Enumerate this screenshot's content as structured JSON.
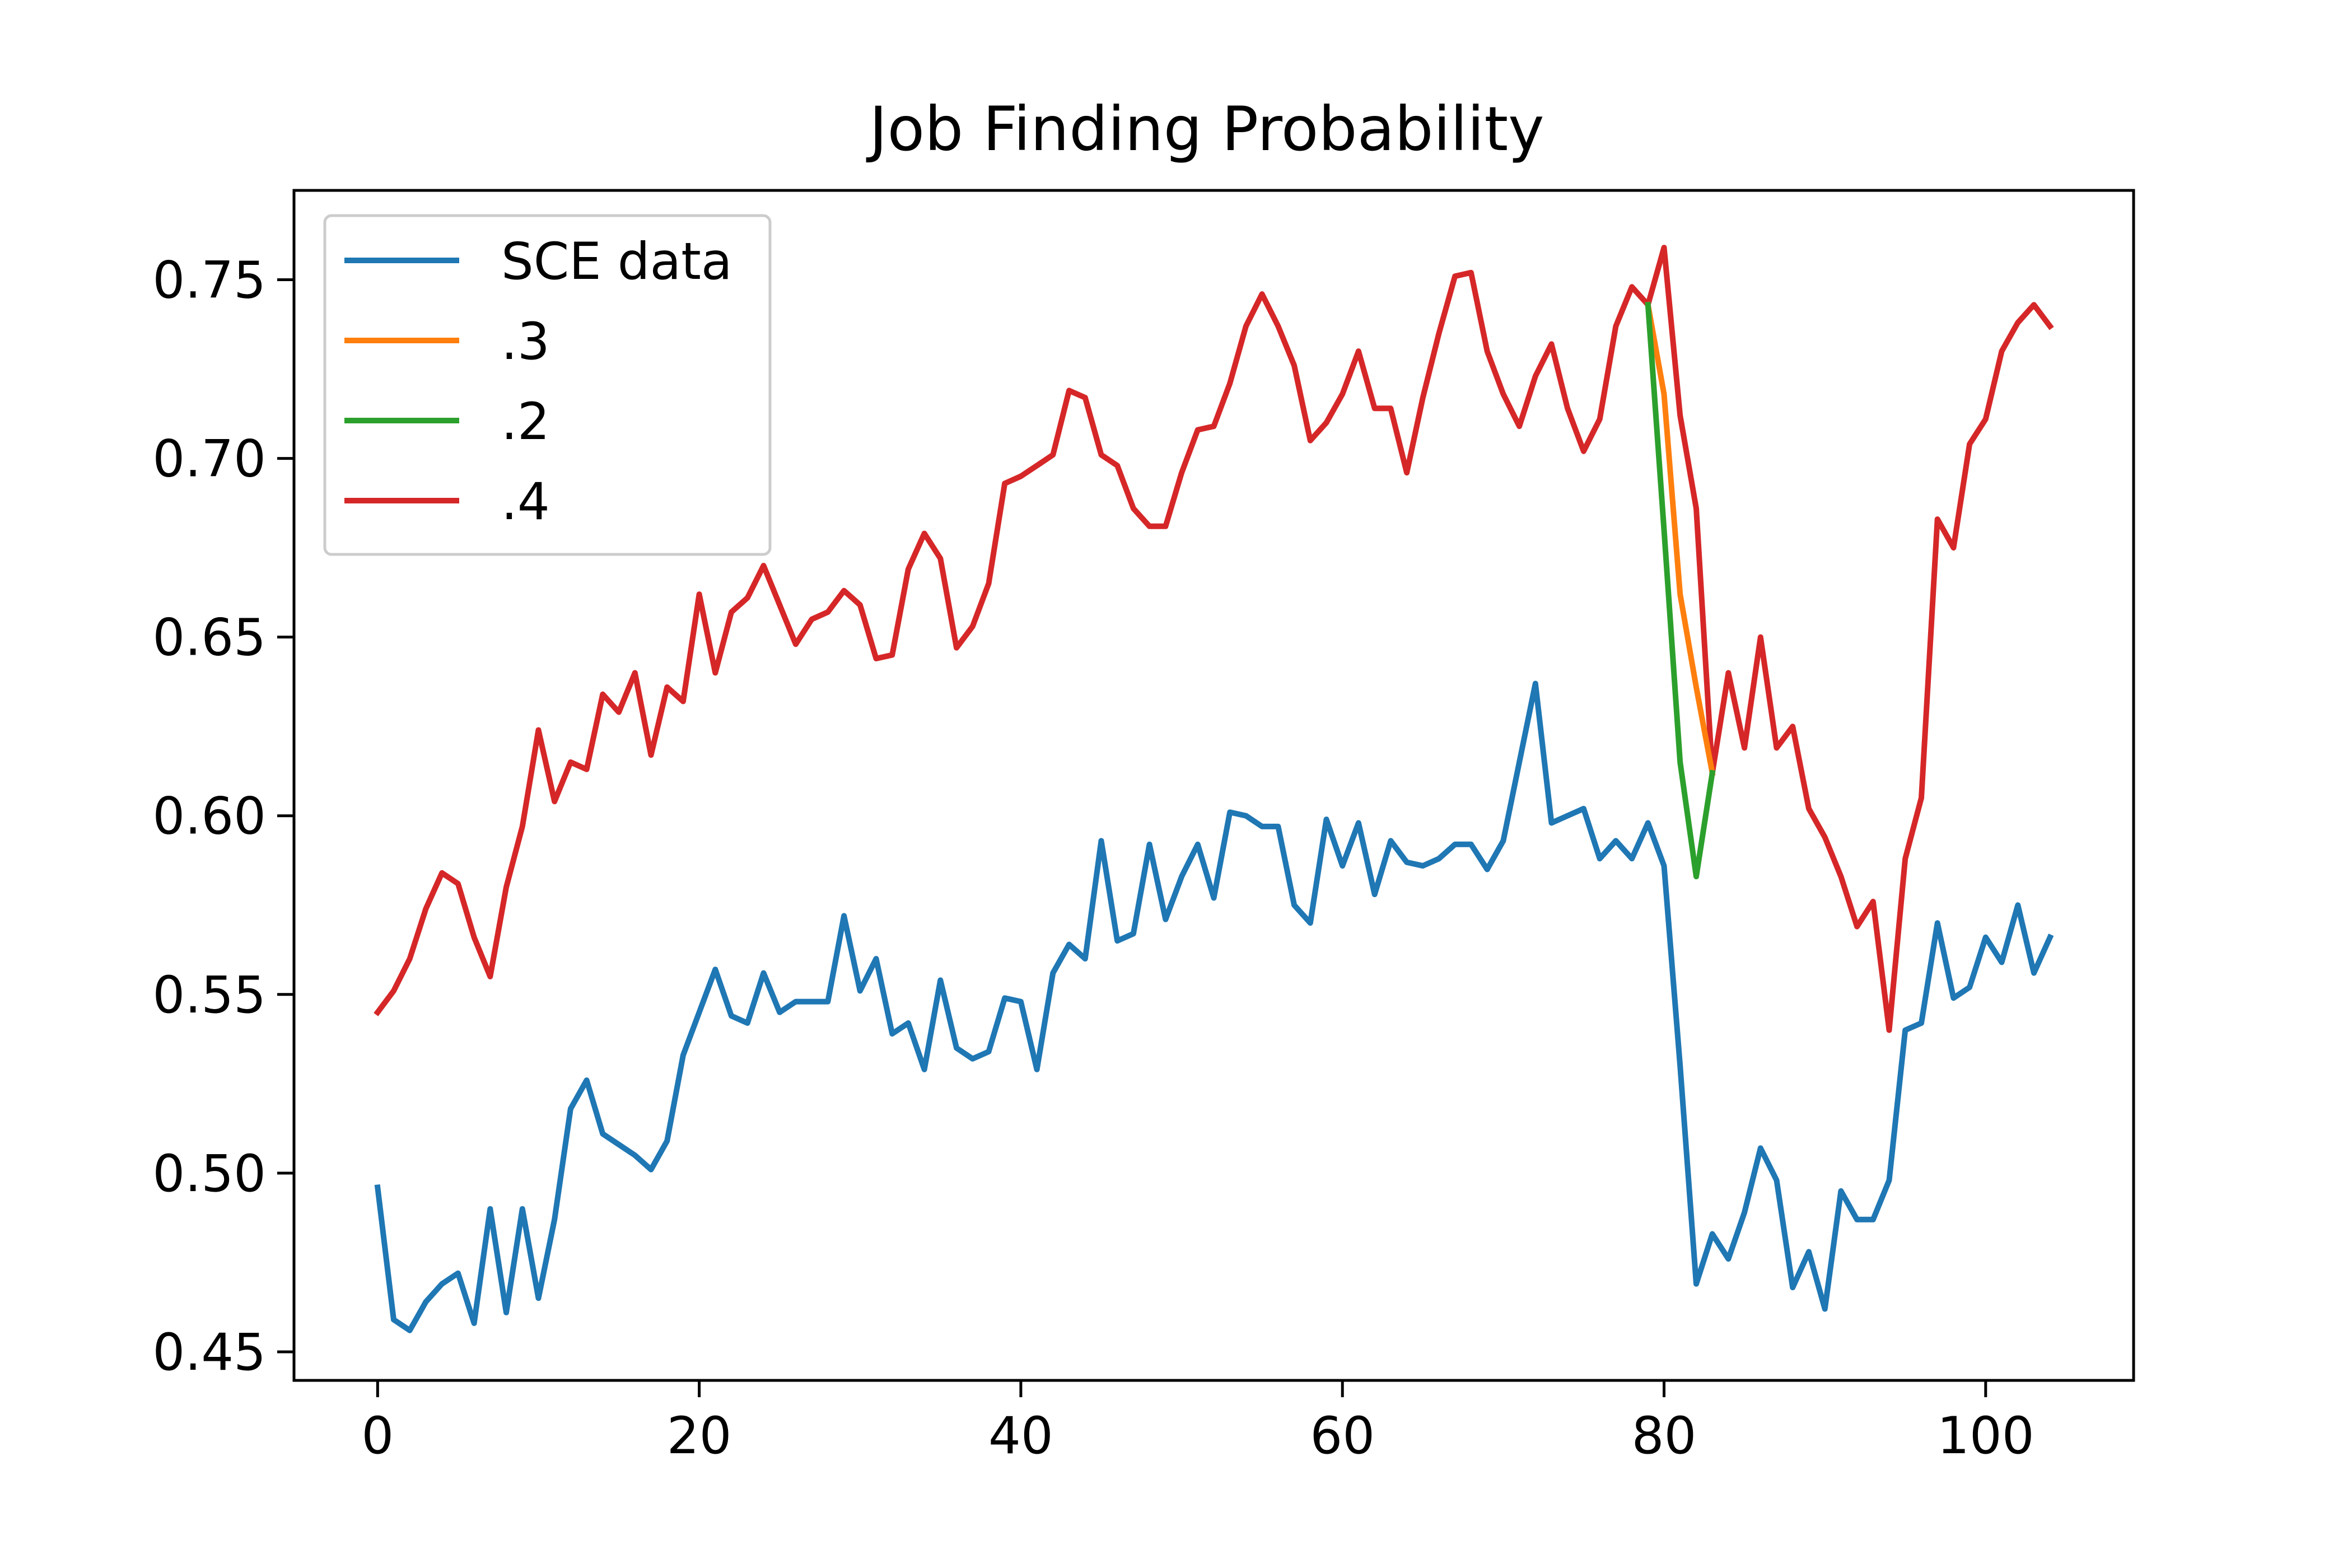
{
  "chart_data": {
    "type": "line",
    "title": "Job Finding Probability",
    "xlabel": "",
    "ylabel": "",
    "xlim": [
      -5.2,
      109.2
    ],
    "ylim": [
      0.442,
      0.775
    ],
    "xticks": [
      0,
      20,
      40,
      60,
      80,
      100
    ],
    "xtick_labels": [
      "0",
      "20",
      "40",
      "60",
      "80",
      "100"
    ],
    "yticks": [
      0.45,
      0.5,
      0.55,
      0.6,
      0.65,
      0.7,
      0.75
    ],
    "ytick_labels": [
      "0.45",
      "0.50",
      "0.55",
      "0.60",
      "0.65",
      "0.70",
      "0.75"
    ],
    "grid": false,
    "legend_position": "top-left",
    "series": [
      {
        "name": "SCE data",
        "color": "#1f77b4",
        "x": [
          0,
          1,
          2,
          3,
          4,
          5,
          6,
          7,
          8,
          9,
          10,
          11,
          12,
          13,
          14,
          15,
          16,
          17,
          18,
          19,
          20,
          21,
          22,
          23,
          24,
          25,
          26,
          27,
          28,
          29,
          30,
          31,
          32,
          33,
          34,
          35,
          36,
          37,
          38,
          39,
          40,
          41,
          42,
          43,
          44,
          45,
          46,
          47,
          48,
          49,
          50,
          51,
          52,
          53,
          54,
          55,
          56,
          57,
          58,
          59,
          60,
          61,
          62,
          63,
          64,
          65,
          66,
          67,
          68,
          69,
          70,
          71,
          72,
          73,
          74,
          75,
          76,
          77,
          78,
          79,
          80,
          81,
          82,
          83,
          84,
          85,
          86,
          87,
          88,
          89,
          90,
          91,
          92,
          93,
          94,
          95,
          96,
          97,
          98,
          99,
          100,
          101,
          102,
          103,
          104
        ],
        "y": [
          0.496,
          0.459,
          0.456,
          0.464,
          0.469,
          0.472,
          0.458,
          0.49,
          0.461,
          0.49,
          0.465,
          0.487,
          0.518,
          0.526,
          0.511,
          0.508,
          0.505,
          0.501,
          0.509,
          0.533,
          0.545,
          0.557,
          0.544,
          0.542,
          0.556,
          0.545,
          0.548,
          0.548,
          0.548,
          0.572,
          0.551,
          0.56,
          0.539,
          0.542,
          0.529,
          0.554,
          0.535,
          0.532,
          0.534,
          0.549,
          0.548,
          0.529,
          0.556,
          0.564,
          0.56,
          0.593,
          0.565,
          0.567,
          0.592,
          0.571,
          0.583,
          0.592,
          0.577,
          0.601,
          0.6,
          0.597,
          0.597,
          0.575,
          0.57,
          0.599,
          0.586,
          0.598,
          0.578,
          0.593,
          0.587,
          0.586,
          0.588,
          0.592,
          0.592,
          0.585,
          0.593,
          0.615,
          0.637,
          0.598,
          0.6,
          0.602,
          0.588,
          0.593,
          0.588,
          0.598,
          0.586,
          0.53,
          0.469,
          0.483,
          0.476,
          0.489,
          0.507,
          0.498,
          0.468,
          0.478,
          0.462,
          0.495,
          0.487,
          0.487,
          0.498,
          0.54,
          0.542,
          0.57,
          0.549,
          0.552,
          0.566,
          0.559,
          0.575,
          0.556,
          0.566
        ]
      },
      {
        "name": ".3",
        "color": "#ff7f0e",
        "x": [
          79,
          80,
          81,
          82,
          83
        ],
        "y": [
          0.743,
          0.718,
          0.662,
          0.636,
          0.612
        ]
      },
      {
        "name": ".2",
        "color": "#2ca02c",
        "x": [
          79,
          80,
          81,
          82,
          83
        ],
        "y": [
          0.743,
          0.68,
          0.615,
          0.583,
          0.612
        ]
      },
      {
        "name": ".4",
        "color": "#d62728",
        "x": [
          0,
          1,
          2,
          3,
          4,
          5,
          6,
          7,
          8,
          9,
          10,
          11,
          12,
          13,
          14,
          15,
          16,
          17,
          18,
          19,
          20,
          21,
          22,
          23,
          24,
          25,
          26,
          27,
          28,
          29,
          30,
          31,
          32,
          33,
          34,
          35,
          36,
          37,
          38,
          39,
          40,
          41,
          42,
          43,
          44,
          45,
          46,
          47,
          48,
          49,
          50,
          51,
          52,
          53,
          54,
          55,
          56,
          57,
          58,
          59,
          60,
          61,
          62,
          63,
          64,
          65,
          66,
          67,
          68,
          69,
          70,
          71,
          72,
          73,
          74,
          75,
          76,
          77,
          78,
          79,
          80,
          81,
          82,
          83,
          84,
          85,
          86,
          87,
          88,
          89,
          90,
          91,
          92,
          93,
          94,
          95,
          96,
          97,
          98,
          99,
          100,
          101,
          102,
          103,
          104
        ],
        "y": [
          0.545,
          0.551,
          0.56,
          0.574,
          0.584,
          0.581,
          0.566,
          0.555,
          0.58,
          0.597,
          0.624,
          0.604,
          0.615,
          0.613,
          0.634,
          0.629,
          0.64,
          0.617,
          0.636,
          0.632,
          0.662,
          0.64,
          0.657,
          0.661,
          0.67,
          0.659,
          0.648,
          0.655,
          0.657,
          0.663,
          0.659,
          0.644,
          0.645,
          0.669,
          0.679,
          0.672,
          0.647,
          0.653,
          0.665,
          0.693,
          0.695,
          0.698,
          0.701,
          0.719,
          0.717,
          0.701,
          0.698,
          0.686,
          0.681,
          0.681,
          0.696,
          0.708,
          0.709,
          0.721,
          0.737,
          0.746,
          0.737,
          0.726,
          0.705,
          0.71,
          0.718,
          0.73,
          0.714,
          0.714,
          0.696,
          0.717,
          0.735,
          0.751,
          0.752,
          0.73,
          0.718,
          0.709,
          0.723,
          0.732,
          0.714,
          0.702,
          0.711,
          0.737,
          0.748,
          0.743,
          0.759,
          0.712,
          0.686,
          0.612,
          0.64,
          0.619,
          0.65,
          0.619,
          0.625,
          0.602,
          0.594,
          0.583,
          0.569,
          0.576,
          0.54,
          0.588,
          0.605,
          0.683,
          0.675,
          0.704,
          0.711,
          0.73,
          0.738,
          0.743,
          0.737
        ]
      }
    ]
  }
}
